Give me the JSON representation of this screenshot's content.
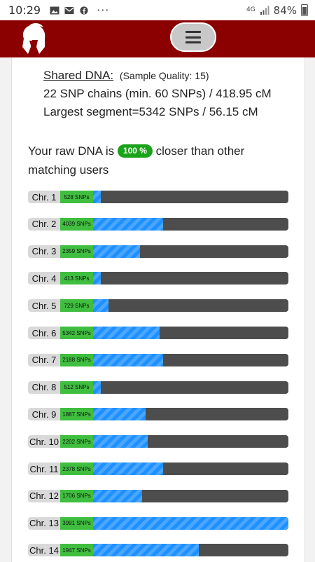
{
  "status_bar": {
    "time": "10:29",
    "icons": [
      "image-icon",
      "mail-icon",
      "facebook-icon"
    ],
    "dots": "···",
    "network": "4G",
    "battery": "84%"
  },
  "header": {
    "logo_icon": "spartan-helmet-icon",
    "menu_icon": "hamburger-icon",
    "brand_color": "#8b0000"
  },
  "shared_dna": {
    "title": "Shared DNA:",
    "quality": "(Sample Quality: 15)",
    "chains": "22 SNP chains (min. 60 SNPs) / 418.95 cM",
    "largest": "Largest segment=5342 SNPs / 56.15 cM"
  },
  "raw_dna": {
    "prefix": "Your raw DNA is",
    "badge": "100 %",
    "suffix": "closer than other matching users"
  },
  "colors": {
    "snp": "#3fbe3f",
    "cm_stripe": "#1e90ff",
    "track": "#4d4d4d",
    "badge": "#1aa31a"
  },
  "chromosomes": [
    {
      "label": "Chr. 1",
      "snps": "528 SNPs",
      "fill": 0.04
    },
    {
      "label": "Chr. 2",
      "snps": "4039 SNPs",
      "fill": 0.36
    },
    {
      "label": "Chr. 3",
      "snps": "2359 SNPs",
      "fill": 0.24
    },
    {
      "label": "Chr. 4",
      "snps": "413 SNPs",
      "fill": 0.04
    },
    {
      "label": "Chr. 5",
      "snps": "729 SNPs",
      "fill": 0.08
    },
    {
      "label": "Chr. 6",
      "snps": "5342 SNPs",
      "fill": 0.34
    },
    {
      "label": "Chr. 7",
      "snps": "2188 SNPs",
      "fill": 0.36
    },
    {
      "label": "Chr. 8",
      "snps": "512 SNPs",
      "fill": 0.04
    },
    {
      "label": "Chr. 9",
      "snps": "1887 SNPs",
      "fill": 0.27
    },
    {
      "label": "Chr. 10",
      "snps": "2202 SNPs",
      "fill": 0.28
    },
    {
      "label": "Chr. 11",
      "snps": "2378 SNPs",
      "fill": 0.36
    },
    {
      "label": "Chr. 12",
      "snps": "1706 SNPs",
      "fill": 0.25
    },
    {
      "label": "Chr. 13",
      "snps": "3991 SNPs",
      "fill": 1.0
    },
    {
      "label": "Chr. 14",
      "snps": "1947 SNPs",
      "fill": 0.54
    }
  ]
}
